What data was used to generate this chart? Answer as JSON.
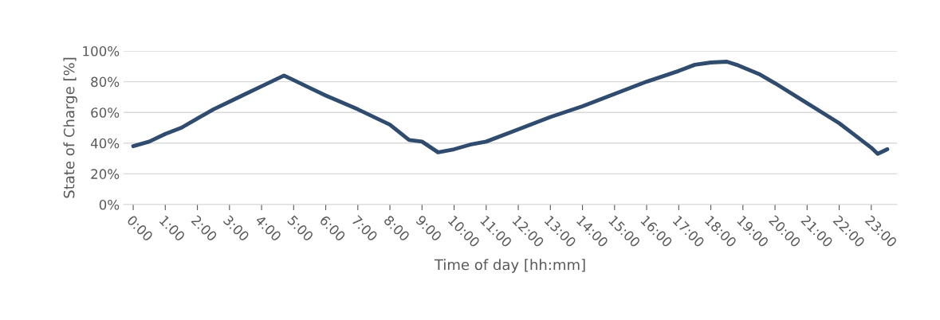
{
  "chart_data": {
    "type": "line",
    "xlabel": "Time of day [hh:mm]",
    "ylabel": "State of Charge [%]",
    "x": [
      0,
      0.5,
      1,
      1.5,
      2,
      2.5,
      3,
      3.5,
      4,
      4.7,
      5,
      5.5,
      6,
      7,
      8,
      8.6,
      9,
      9.5,
      10,
      10.5,
      11,
      12,
      13,
      14,
      15,
      16,
      17,
      17.5,
      18,
      18.5,
      18.8,
      19.5,
      20,
      21,
      22,
      22.5,
      23,
      23.2,
      23.5
    ],
    "series": [
      {
        "color": "#2f4b6e",
        "values": [
          38,
          41,
          46,
          50,
          56,
          62,
          67,
          72,
          77,
          84,
          81,
          76,
          71,
          62,
          52,
          42,
          41,
          34,
          36,
          39,
          41,
          49,
          57,
          64,
          72,
          80,
          87,
          91,
          92.5,
          93,
          91,
          85,
          79,
          66,
          53,
          45,
          37,
          33,
          36
        ]
      }
    ],
    "xlim": [
      -0.3,
      23.8
    ],
    "xticks": [
      {
        "value": 0,
        "label": "0:00"
      },
      {
        "value": 1,
        "label": "1:00"
      },
      {
        "value": 2,
        "label": "2:00"
      },
      {
        "value": 3,
        "label": "3:00"
      },
      {
        "value": 4,
        "label": "4:00"
      },
      {
        "value": 5,
        "label": "5:00"
      },
      {
        "value": 6,
        "label": "6:00"
      },
      {
        "value": 7,
        "label": "7:00"
      },
      {
        "value": 8,
        "label": "8:00"
      },
      {
        "value": 9,
        "label": "9:00"
      },
      {
        "value": 10,
        "label": "10:00"
      },
      {
        "value": 11,
        "label": "11:00"
      },
      {
        "value": 12,
        "label": "12:00"
      },
      {
        "value": 13,
        "label": "13:00"
      },
      {
        "value": 14,
        "label": "14:00"
      },
      {
        "value": 15,
        "label": "15:00"
      },
      {
        "value": 16,
        "label": "16:00"
      },
      {
        "value": 17,
        "label": "17:00"
      },
      {
        "value": 18,
        "label": "18:00"
      },
      {
        "value": 19,
        "label": "19:00"
      },
      {
        "value": 20,
        "label": "20:00"
      },
      {
        "value": 21,
        "label": "21:00"
      },
      {
        "value": 22,
        "label": "22:00"
      },
      {
        "value": 23,
        "label": "23:00"
      }
    ],
    "ylim": [
      0,
      100
    ],
    "yticks": [
      {
        "value": 0,
        "label": "0%"
      },
      {
        "value": 20,
        "label": "20%"
      },
      {
        "value": 40,
        "label": "40%"
      },
      {
        "value": 60,
        "label": "60%"
      },
      {
        "value": 80,
        "label": "80%"
      },
      {
        "value": 100,
        "label": "100%"
      }
    ],
    "grid": "y",
    "line_style": "solid",
    "marker": "none"
  }
}
